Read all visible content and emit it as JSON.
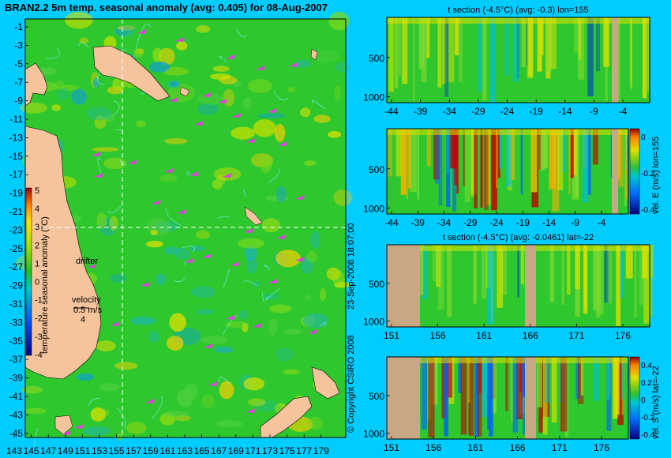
{
  "title": "BRAN2.2 5m temp. seasonal anomaly (avg: 0.405) for 08-Aug-2007",
  "copyright": "© Copyright CSIRO 2008",
  "timestamp": "23-Sep-2008 18:07:00",
  "map": {
    "lat_ticks": [
      "-1",
      "-3",
      "-5",
      "-7",
      "-9",
      "-11",
      "-13",
      "-15",
      "-17",
      "-19",
      "-21",
      "-23",
      "-25",
      "-27",
      "-29",
      "-31",
      "-33",
      "-35",
      "-37",
      "-39",
      "-41",
      "-43",
      "-45"
    ],
    "lon_ticks": [
      "143",
      "145",
      "147",
      "149",
      "151",
      "153",
      "155",
      "157",
      "159",
      "161",
      "163",
      "165",
      "167",
      "169",
      "171",
      "173",
      "175",
      "177",
      "179"
    ],
    "drifter_label": "drifter",
    "velocity_label": "velocity",
    "velocity_value1": "0.5 m/s",
    "velocity_value2": "4",
    "colorbar_label": "temperature seasonal anomaly (°C)",
    "colorbar_ticks": [
      "5",
      "4",
      "3",
      "2",
      "1",
      "0",
      "-1",
      "-2",
      "-3",
      "-4"
    ]
  },
  "panels": {
    "p1": {
      "title": "t section (-4.5°C) (avg: -0.3) lon=155",
      "x_ticks": [
        "-44",
        "-39",
        "-34",
        "-29",
        "-24",
        "-19",
        "-14",
        "-9",
        "-4"
      ],
      "y_ticks": [
        "500",
        "1000"
      ]
    },
    "p2": {
      "title": "",
      "cb_label": "vel. E (m/s) lon=155",
      "x_ticks": [
        "-44",
        "-39",
        "-34",
        "-29",
        "-24",
        "-19",
        "-14",
        "-9",
        "-4"
      ],
      "y_ticks": [
        "500",
        "1000"
      ],
      "cb_ticks": [
        "0",
        "-0.2",
        "-0.4"
      ]
    },
    "p3": {
      "title": "t section (-4.5°C) (avg: -0.0461) lat=-22",
      "x_ticks": [
        "151",
        "156",
        "161",
        "166",
        "171",
        "176"
      ],
      "y_ticks": [
        "500",
        "1000"
      ]
    },
    "p4": {
      "title": "",
      "cb_label": "vel. S (m/s) lat=-22",
      "x_ticks": [
        "151",
        "156",
        "161",
        "166",
        "171",
        "176"
      ],
      "y_ticks": [
        "500",
        "1000"
      ],
      "cb_ticks": [
        "0.4",
        "0.2",
        "0",
        "-0.2",
        "-0.4"
      ]
    }
  },
  "chart_data": [
    {
      "type": "heatmap",
      "title": "BRAN2.2 5m temp. seasonal anomaly (avg: 0.405) for 08-Aug-2007",
      "x_range": [
        143,
        180
      ],
      "y_range": [
        -45,
        0
      ],
      "value_range": [
        -4,
        5
      ]
    },
    {
      "type": "heatmap",
      "title": "t section (-4.5°C) (avg: -0.3) lon=155",
      "x_range": [
        -45,
        -1
      ],
      "y_range": [
        1050,
        0
      ]
    },
    {
      "type": "heatmap",
      "title": "",
      "ylabel": "vel. E (m/s) lon=155",
      "x_range": [
        -45,
        -1
      ],
      "y_range": [
        1050,
        0
      ]
    },
    {
      "type": "heatmap",
      "title": "t section (-4.5°C) (avg: -0.0461) lat=-22",
      "x_range": [
        150,
        180
      ],
      "y_range": [
        1050,
        0
      ]
    },
    {
      "type": "heatmap",
      "title": "",
      "ylabel": "vel. S (m/s) lat=-22",
      "x_range": [
        150,
        180
      ],
      "y_range": [
        1050,
        0
      ]
    }
  ],
  "colors": {
    "background": "#00ccff",
    "ocean": "#2ec82e",
    "land": "#f6c49c",
    "mask": "#c8a882",
    "drifter": "#e040e0"
  }
}
